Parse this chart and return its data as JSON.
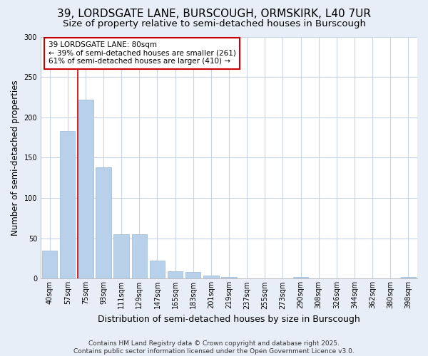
{
  "title1": "39, LORDSGATE LANE, BURSCOUGH, ORMSKIRK, L40 7UR",
  "title2": "Size of property relative to semi-detached houses in Burscough",
  "xlabel": "Distribution of semi-detached houses by size in Burscough",
  "ylabel": "Number of semi-detached properties",
  "categories": [
    "40sqm",
    "57sqm",
    "75sqm",
    "93sqm",
    "111sqm",
    "129sqm",
    "147sqm",
    "165sqm",
    "183sqm",
    "201sqm",
    "219sqm",
    "237sqm",
    "255sqm",
    "273sqm",
    "290sqm",
    "308sqm",
    "326sqm",
    "344sqm",
    "362sqm",
    "380sqm",
    "398sqm"
  ],
  "values": [
    35,
    183,
    222,
    138,
    55,
    55,
    22,
    9,
    8,
    4,
    2,
    0,
    0,
    0,
    2,
    0,
    0,
    0,
    0,
    0,
    2
  ],
  "bar_color": "#b8d0ea",
  "bar_edge_color": "#9ab8d8",
  "vline_color": "#cc0000",
  "vline_x_index": 2,
  "annotation_title": "39 LORDSGATE LANE: 80sqm",
  "annotation_line2": "← 39% of semi-detached houses are smaller (261)",
  "annotation_line3": "61% of semi-detached houses are larger (410) →",
  "annotation_box_facecolor": "#ffffff",
  "annotation_box_edgecolor": "#cc0000",
  "footnote1": "Contains HM Land Registry data © Crown copyright and database right 2025.",
  "footnote2": "Contains public sector information licensed under the Open Government Licence v3.0.",
  "ylim": [
    0,
    300
  ],
  "fig_bg_color": "#e8eef8",
  "plot_bg_color": "#ffffff",
  "grid_color": "#c8d4e8",
  "title1_fontsize": 11,
  "title2_fontsize": 9.5,
  "ylabel_fontsize": 8.5,
  "xlabel_fontsize": 9,
  "tick_fontsize": 7,
  "footnote_fontsize": 6.5,
  "ann_fontsize": 7.5
}
